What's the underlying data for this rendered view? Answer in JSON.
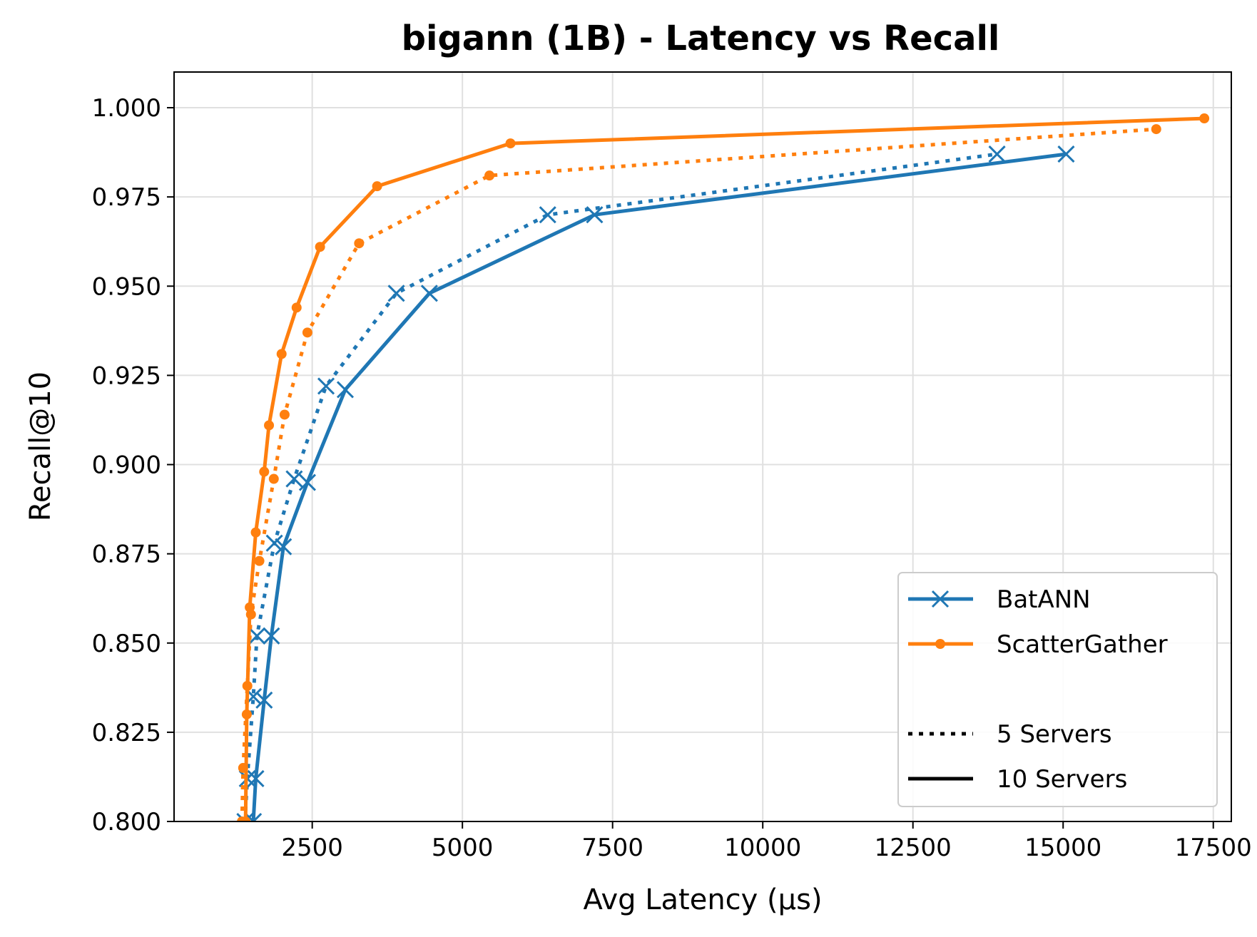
{
  "chart_data": {
    "type": "line",
    "title": "bigann (1B) - Latency vs Recall",
    "xlabel": "Avg Latency (µs)",
    "ylabel": "Recall@10",
    "xlim": [
      200,
      17800
    ],
    "ylim": [
      0.8,
      1.01
    ],
    "xticks": [
      2500,
      5000,
      7500,
      10000,
      12500,
      15000,
      17500
    ],
    "yticks": [
      0.8,
      0.825,
      0.85,
      0.875,
      0.9,
      0.925,
      0.95,
      0.975,
      1.0
    ],
    "xtick_labels": [
      "2500",
      "5000",
      "7500",
      "10000",
      "12500",
      "15000",
      "17500"
    ],
    "ytick_labels": [
      "0.800",
      "0.825",
      "0.850",
      "0.875",
      "0.900",
      "0.925",
      "0.950",
      "0.975",
      "1.000"
    ],
    "grid": true,
    "legend_position": "bottom-right",
    "colors": {
      "BatANN": "#1f77b4",
      "ScatterGather": "#ff7f0e"
    },
    "series": [
      {
        "name": "BatANN",
        "servers": "5 Servers",
        "style": "dotted",
        "marker": "x",
        "color": "#1f77b4",
        "x": [
          1380,
          1420,
          1520,
          1580,
          1870,
          2200,
          2730,
          3900,
          6420,
          13900
        ],
        "y": [
          0.8,
          0.812,
          0.835,
          0.852,
          0.878,
          0.896,
          0.922,
          0.948,
          0.97,
          0.987
        ]
      },
      {
        "name": "BatANN",
        "servers": "10 Servers",
        "style": "solid",
        "marker": "x",
        "color": "#1f77b4",
        "x": [
          1520,
          1560,
          1700,
          1820,
          2020,
          2420,
          3050,
          4450,
          7200,
          15050
        ],
        "y": [
          0.8,
          0.812,
          0.834,
          0.852,
          0.877,
          0.895,
          0.921,
          0.948,
          0.97,
          0.987
        ]
      },
      {
        "name": "ScatterGather",
        "servers": "5 Servers",
        "style": "dotted",
        "marker": "dot",
        "color": "#ff7f0e",
        "x": [
          1330,
          1350,
          1420,
          1480,
          1620,
          1860,
          2040,
          2420,
          3280,
          5450,
          16550
        ],
        "y": [
          0.8,
          0.815,
          0.838,
          0.858,
          0.873,
          0.896,
          0.914,
          0.937,
          0.962,
          0.981,
          0.994
        ]
      },
      {
        "name": "ScatterGather",
        "servers": "10 Servers",
        "style": "solid",
        "marker": "dot",
        "color": "#ff7f0e",
        "x": [
          1390,
          1410,
          1460,
          1560,
          1700,
          1780,
          1990,
          2240,
          2630,
          3580,
          5800,
          17350
        ],
        "y": [
          0.8,
          0.83,
          0.86,
          0.881,
          0.898,
          0.911,
          0.931,
          0.944,
          0.961,
          0.978,
          0.99,
          0.997
        ]
      }
    ],
    "legend": {
      "entries": [
        {
          "label": "BatANN",
          "color": "#1f77b4",
          "marker": "x",
          "style": "solid"
        },
        {
          "label": "ScatterGather",
          "color": "#ff7f0e",
          "marker": "dot",
          "style": "solid"
        },
        {
          "label": "",
          "color": "#000000",
          "marker": "none",
          "style": "blank"
        },
        {
          "label": "5 Servers",
          "color": "#000000",
          "marker": "none",
          "style": "dotted"
        },
        {
          "label": "10 Servers",
          "color": "#000000",
          "marker": "none",
          "style": "solid"
        }
      ]
    }
  }
}
